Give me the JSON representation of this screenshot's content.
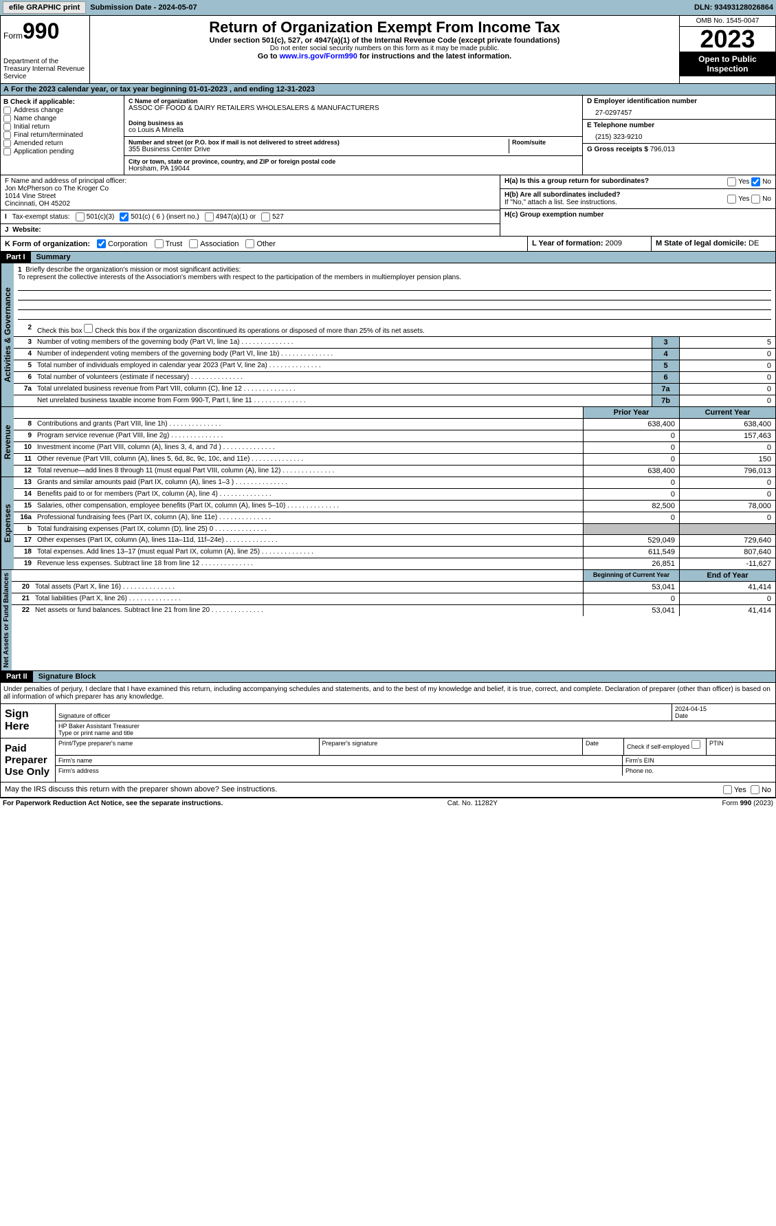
{
  "topbar": {
    "efile_btn": "efile GRAPHIC print",
    "submission_label": "Submission Date - 2024-05-07",
    "dln": "DLN: 93493128026864"
  },
  "header": {
    "form_label": "Form",
    "form_num": "990",
    "dept": "Department of the Treasury\nInternal Revenue Service",
    "title": "Return of Organization Exempt From Income Tax",
    "sub1": "Under section 501(c), 527, or 4947(a)(1) of the Internal Revenue Code (except private foundations)",
    "sub2": "Do not enter social security numbers on this form as it may be made public.",
    "sub3_pre": "Go to ",
    "sub3_link": "www.irs.gov/Form990",
    "sub3_post": " for instructions and the latest information.",
    "omb": "OMB No. 1545-0047",
    "year": "2023",
    "inspect": "Open to Public Inspection"
  },
  "section_a": {
    "text": "For the 2023 calendar year, or tax year beginning 01-01-2023    , and ending 12-31-2023"
  },
  "section_b": {
    "hdr": "B Check if applicable:",
    "items": [
      "Address change",
      "Name change",
      "Initial return",
      "Final return/terminated",
      "Amended return",
      "Application pending"
    ]
  },
  "section_c": {
    "name_lbl": "C Name of organization",
    "name": "ASSOC OF FOOD & DAIRY RETAILERS WHOLESALERS & MANUFACTURERS",
    "dba_lbl": "Doing business as",
    "dba": "co Louis A Minella",
    "street_lbl": "Number and street (or P.O. box if mail is not delivered to street address)",
    "street": "355 Business Center Drive",
    "room_lbl": "Room/suite",
    "city_lbl": "City or town, state or province, country, and ZIP or foreign postal code",
    "city": "Horsham, PA  19044"
  },
  "section_d": {
    "ein_lbl": "D Employer identification number",
    "ein": "27-0297457",
    "tel_lbl": "E Telephone number",
    "tel": "(215) 323-9210",
    "gross_lbl": "G Gross receipts $",
    "gross": "796,013"
  },
  "section_f": {
    "lbl": "F  Name and address of principal officer:",
    "name": "Jon McPherson co The Kroger Co",
    "street": "1014 Vine Street",
    "city": "Cincinnati, OH  45202"
  },
  "section_h": {
    "ha_lbl": "H(a)  Is this a group return for subordinates?",
    "hb_lbl": "H(b)  Are all subordinates included?",
    "hb_note": "If \"No,\" attach a list. See instructions.",
    "hc_lbl": "H(c)  Group exemption number "
  },
  "tax_exempt": {
    "lbl": "Tax-exempt status:",
    "opts": [
      "501(c)(3)",
      "501(c) ( 6 ) (insert no.)",
      "4947(a)(1) or",
      "527"
    ]
  },
  "website_lbl": "Website: ",
  "section_k": {
    "lbl": "K Form of organization:",
    "opts": [
      "Corporation",
      "Trust",
      "Association",
      "Other"
    ]
  },
  "section_l": {
    "lbl": "L Year of formation:",
    "val": "2009"
  },
  "section_m": {
    "lbl": "M State of legal domicile:",
    "val": "DE"
  },
  "part1": {
    "hdr": "Part I",
    "title": "Summary",
    "tabs": [
      "Activities & Governance",
      "Revenue",
      "Expenses",
      "Net Assets or Fund Balances"
    ],
    "mission_lbl": "Briefly describe the organization's mission or most significant activities:",
    "mission": "To represent the collective interests of the Association's members with respect to the participation of the members in multiemployer pension plans.",
    "line2": "Check this box      if the organization discontinued its operations or disposed of more than 25% of its net assets.",
    "rows_gov": [
      {
        "n": "3",
        "t": "Number of voting members of the governing body (Part VI, line 1a)",
        "box": "3",
        "v": "5"
      },
      {
        "n": "4",
        "t": "Number of independent voting members of the governing body (Part VI, line 1b)",
        "box": "4",
        "v": "0"
      },
      {
        "n": "5",
        "t": "Total number of individuals employed in calendar year 2023 (Part V, line 2a)",
        "box": "5",
        "v": "0"
      },
      {
        "n": "6",
        "t": "Total number of volunteers (estimate if necessary)",
        "box": "6",
        "v": "0"
      },
      {
        "n": "7a",
        "t": "Total unrelated business revenue from Part VIII, column (C), line 12",
        "box": "7a",
        "v": "0"
      },
      {
        "n": "",
        "t": "Net unrelated business taxable income from Form 990-T, Part I, line 11",
        "box": "7b",
        "v": "0"
      }
    ],
    "col_prior": "Prior Year",
    "col_current": "Current Year",
    "rows_rev": [
      {
        "n": "8",
        "t": "Contributions and grants (Part VIII, line 1h)",
        "p": "638,400",
        "c": "638,400"
      },
      {
        "n": "9",
        "t": "Program service revenue (Part VIII, line 2g)",
        "p": "0",
        "c": "157,463"
      },
      {
        "n": "10",
        "t": "Investment income (Part VIII, column (A), lines 3, 4, and 7d )",
        "p": "0",
        "c": "0"
      },
      {
        "n": "11",
        "t": "Other revenue (Part VIII, column (A), lines 5, 6d, 8c, 9c, 10c, and 11e)",
        "p": "0",
        "c": "150"
      },
      {
        "n": "12",
        "t": "Total revenue—add lines 8 through 11 (must equal Part VIII, column (A), line 12)",
        "p": "638,400",
        "c": "796,013"
      }
    ],
    "rows_exp": [
      {
        "n": "13",
        "t": "Grants and similar amounts paid (Part IX, column (A), lines 1–3 )",
        "p": "0",
        "c": "0"
      },
      {
        "n": "14",
        "t": "Benefits paid to or for members (Part IX, column (A), line 4)",
        "p": "0",
        "c": "0"
      },
      {
        "n": "15",
        "t": "Salaries, other compensation, employee benefits (Part IX, column (A), lines 5–10)",
        "p": "82,500",
        "c": "78,000"
      },
      {
        "n": "16a",
        "t": "Professional fundraising fees (Part IX, column (A), line 11e)",
        "p": "0",
        "c": "0"
      },
      {
        "n": "b",
        "t": "Total fundraising expenses (Part IX, column (D), line 25) 0",
        "p": "",
        "c": "",
        "grey": true
      },
      {
        "n": "17",
        "t": "Other expenses (Part IX, column (A), lines 11a–11d, 11f–24e)",
        "p": "529,049",
        "c": "729,640"
      },
      {
        "n": "18",
        "t": "Total expenses. Add lines 13–17 (must equal Part IX, column (A), line 25)",
        "p": "611,549",
        "c": "807,640"
      },
      {
        "n": "19",
        "t": "Revenue less expenses. Subtract line 18 from line 12",
        "p": "26,851",
        "c": "-11,627"
      }
    ],
    "col_begin": "Beginning of Current Year",
    "col_end": "End of Year",
    "rows_net": [
      {
        "n": "20",
        "t": "Total assets (Part X, line 16)",
        "p": "53,041",
        "c": "41,414"
      },
      {
        "n": "21",
        "t": "Total liabilities (Part X, line 26)",
        "p": "0",
        "c": "0"
      },
      {
        "n": "22",
        "t": "Net assets or fund balances. Subtract line 21 from line 20",
        "p": "53,041",
        "c": "41,414"
      }
    ]
  },
  "part2": {
    "hdr": "Part II",
    "title": "Signature Block",
    "decl": "Under penalties of perjury, I declare that I have examined this return, including accompanying schedules and statements, and to the best of my knowledge and belief, it is true, correct, and complete. Declaration of preparer (other than officer) is based on all information of which preparer has any knowledge."
  },
  "sign": {
    "left": "Sign Here",
    "sig_lbl": "Signature of officer",
    "date_lbl": "Date",
    "date": "2024-04-15",
    "name": "HP Baker  Assistant Treasurer",
    "name_lbl": "Type or print name and title"
  },
  "preparer": {
    "left": "Paid Preparer Use Only",
    "name_lbl": "Print/Type preparer's name",
    "sig_lbl": "Preparer's signature",
    "date_lbl": "Date",
    "self_lbl": "Check       if self-employed",
    "ptin_lbl": "PTIN",
    "firm_name_lbl": "Firm's name ",
    "firm_ein_lbl": "Firm's EIN ",
    "firm_addr_lbl": "Firm's address ",
    "phone_lbl": "Phone no."
  },
  "discuss": "May the IRS discuss this return with the preparer shown above? See instructions.",
  "footer": {
    "left": "For Paperwork Reduction Act Notice, see the separate instructions.",
    "mid": "Cat. No. 11282Y",
    "right": "Form 990 (2023)"
  },
  "colors": {
    "header_bg": "#9dbecc",
    "black": "#000000"
  }
}
